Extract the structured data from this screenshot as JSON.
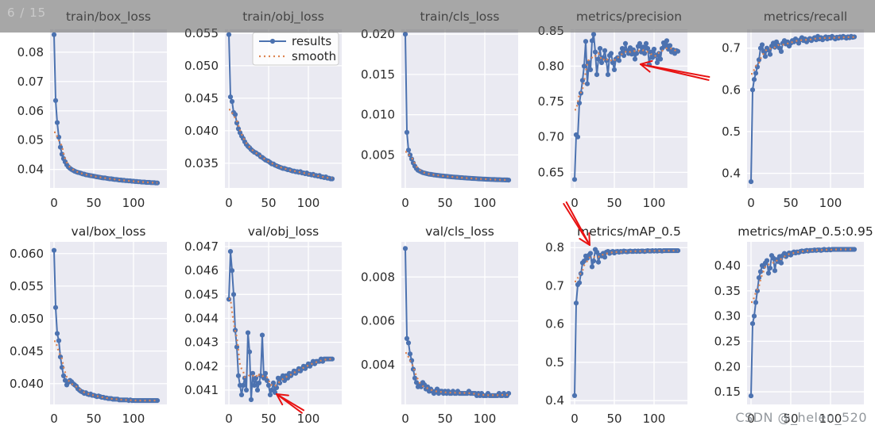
{
  "overlay": {
    "page_indicator": "6 / 15",
    "watermark": "CSDN @_helen_520"
  },
  "colors": {
    "results_line": "#4c72b0",
    "smooth_line": "#dd8452",
    "plot_bg": "#eaeaf2",
    "grid": "#ffffff",
    "tick_text": "#2b2b2b",
    "title_text": "#262626",
    "arrow": "#e81212",
    "legend_border": "#cccccc"
  },
  "legend": {
    "entries": [
      {
        "label": "results"
      },
      {
        "label": "smooth"
      }
    ]
  },
  "smoothing": {
    "method": "centered_moving_average",
    "window": 9
  },
  "annotations": {
    "arrows": [
      {
        "from": [
          892,
          99
        ],
        "to": [
          806,
          81
        ]
      },
      {
        "from": [
          711,
          256
        ],
        "to": [
          742,
          309
        ]
      },
      {
        "from": [
          381,
          519
        ],
        "to": [
          348,
          497
        ]
      }
    ]
  },
  "chart_data": [
    {
      "title": "train/box_loss",
      "type": "line",
      "legend": false,
      "x": {
        "start": 0,
        "step": 2,
        "count": 66
      },
      "xticks": [
        0,
        50,
        100
      ],
      "xlim": [
        -5,
        142
      ],
      "ylim": [
        0.0337,
        0.0878
      ],
      "ytick_values": [
        0.04,
        0.05,
        0.06,
        0.07,
        0.08
      ],
      "ytick_labels": [
        "0.04",
        "0.05",
        "0.06",
        "0.07",
        "0.08"
      ],
      "values": [
        0.086,
        0.0635,
        0.056,
        0.051,
        0.0476,
        0.0452,
        0.0437,
        0.0426,
        0.0416,
        0.0409,
        0.0404,
        0.04,
        0.0397,
        0.0394,
        0.0392,
        0.039,
        0.0389,
        0.0387,
        0.0385,
        0.0384,
        0.0382,
        0.0381,
        0.038,
        0.0379,
        0.0378,
        0.0377,
        0.0376,
        0.0375,
        0.0374,
        0.0373,
        0.0372,
        0.0371,
        0.0371,
        0.037,
        0.0369,
        0.0368,
        0.0368,
        0.0367,
        0.0366,
        0.0366,
        0.0365,
        0.0364,
        0.0364,
        0.0363,
        0.0363,
        0.0362,
        0.0362,
        0.0361,
        0.0361,
        0.036,
        0.036,
        0.0359,
        0.0359,
        0.0358,
        0.0358,
        0.0357,
        0.0357,
        0.0357,
        0.0356,
        0.0356,
        0.0356,
        0.0355,
        0.0355,
        0.0355,
        0.0354,
        0.0354
      ]
    },
    {
      "title": "train/obj_loss",
      "type": "line",
      "legend": true,
      "x": {
        "start": 0,
        "step": 2,
        "count": 66
      },
      "xticks": [
        0,
        50,
        100
      ],
      "xlim": [
        -5,
        142
      ],
      "ylim": [
        0.0312,
        0.0556
      ],
      "ytick_values": [
        0.035,
        0.04,
        0.045,
        0.05,
        0.055
      ],
      "ytick_labels": [
        "0.035",
        "0.040",
        "0.045",
        "0.050",
        "0.055"
      ],
      "values": [
        0.0548,
        0.0452,
        0.0445,
        0.0428,
        0.0425,
        0.0412,
        0.0403,
        0.0397,
        0.0392,
        0.0388,
        0.0383,
        0.0379,
        0.0376,
        0.0374,
        0.0371,
        0.0369,
        0.0367,
        0.0366,
        0.0364,
        0.0363,
        0.036,
        0.0359,
        0.0357,
        0.0355,
        0.0354,
        0.0353,
        0.0351,
        0.0349,
        0.0349,
        0.0347,
        0.0346,
        0.0345,
        0.0344,
        0.0343,
        0.0342,
        0.0342,
        0.0341,
        0.034,
        0.034,
        0.0339,
        0.0338,
        0.0338,
        0.0337,
        0.0337,
        0.0336,
        0.0337,
        0.0335,
        0.0335,
        0.0334,
        0.0335,
        0.0333,
        0.0333,
        0.0332,
        0.0333,
        0.0331,
        0.0331,
        0.033,
        0.0331,
        0.0329,
        0.0329,
        0.0328,
        0.0329,
        0.0327,
        0.0327,
        0.0326,
        0.0326
      ]
    },
    {
      "title": "train/cls_loss",
      "type": "line",
      "legend": false,
      "x": {
        "start": 0,
        "step": 2,
        "count": 66
      },
      "xticks": [
        0,
        50,
        100
      ],
      "xlim": [
        -5,
        142
      ],
      "ylim": [
        0.0009,
        0.0206
      ],
      "ytick_values": [
        0.005,
        0.01,
        0.015,
        0.02
      ],
      "ytick_labels": [
        "0.005",
        "0.010",
        "0.015",
        "0.020"
      ],
      "values": [
        0.02,
        0.0078,
        0.0056,
        0.005,
        0.0045,
        0.004,
        0.0036,
        0.0033,
        0.0031,
        0.003,
        0.0029,
        0.0028,
        0.00275,
        0.0027,
        0.00265,
        0.0026,
        0.00258,
        0.00255,
        0.00252,
        0.0025,
        0.00247,
        0.00245,
        0.00242,
        0.0024,
        0.00238,
        0.00236,
        0.00234,
        0.00232,
        0.0023,
        0.00228,
        0.00226,
        0.00225,
        0.00223,
        0.00222,
        0.0022,
        0.00218,
        0.00217,
        0.00215,
        0.00214,
        0.00212,
        0.00211,
        0.0021,
        0.00208,
        0.00207,
        0.00206,
        0.00205,
        0.00203,
        0.00202,
        0.00201,
        0.002,
        0.00199,
        0.00198,
        0.00197,
        0.00196,
        0.00195,
        0.00195,
        0.00194,
        0.00193,
        0.00192,
        0.00192,
        0.00191,
        0.0019,
        0.0019,
        0.00189,
        0.00189,
        0.00188
      ]
    },
    {
      "title": "metrics/precision",
      "type": "line",
      "legend": false,
      "x": {
        "start": 0,
        "step": 2,
        "count": 66
      },
      "xticks": [
        0,
        50,
        100
      ],
      "xlim": [
        -5,
        142
      ],
      "ylim": [
        0.628,
        0.852
      ],
      "ytick_values": [
        0.65,
        0.7,
        0.75,
        0.8,
        0.85
      ],
      "ytick_labels": [
        "0.65",
        "0.70",
        "0.75",
        "0.80",
        "0.85"
      ],
      "values": [
        0.64,
        0.703,
        0.7,
        0.748,
        0.762,
        0.78,
        0.8,
        0.835,
        0.775,
        0.805,
        0.795,
        0.836,
        0.845,
        0.82,
        0.788,
        0.81,
        0.825,
        0.805,
        0.812,
        0.822,
        0.808,
        0.788,
        0.815,
        0.818,
        0.805,
        0.795,
        0.81,
        0.812,
        0.808,
        0.818,
        0.825,
        0.815,
        0.832,
        0.822,
        0.818,
        0.826,
        0.817,
        0.823,
        0.81,
        0.818,
        0.828,
        0.832,
        0.82,
        0.827,
        0.818,
        0.832,
        0.825,
        0.802,
        0.82,
        0.812,
        0.824,
        0.815,
        0.805,
        0.818,
        0.81,
        0.825,
        0.833,
        0.828,
        0.836,
        0.824,
        0.829,
        0.82,
        0.823,
        0.818,
        0.822,
        0.821
      ]
    },
    {
      "title": "metrics/recall",
      "type": "line",
      "legend": false,
      "x": {
        "start": 0,
        "step": 2,
        "count": 66
      },
      "xticks": [
        0,
        50,
        100
      ],
      "xlim": [
        -5,
        142
      ],
      "ylim": [
        0.365,
        0.745
      ],
      "ytick_values": [
        0.4,
        0.5,
        0.6,
        0.7
      ],
      "ytick_labels": [
        "0.4",
        "0.5",
        "0.6",
        "0.7"
      ],
      "values": [
        0.38,
        0.6,
        0.625,
        0.64,
        0.655,
        0.672,
        0.7,
        0.708,
        0.692,
        0.68,
        0.7,
        0.695,
        0.685,
        0.705,
        0.712,
        0.702,
        0.715,
        0.708,
        0.7,
        0.692,
        0.712,
        0.718,
        0.71,
        0.715,
        0.705,
        0.712,
        0.718,
        0.715,
        0.722,
        0.718,
        0.712,
        0.72,
        0.725,
        0.718,
        0.722,
        0.715,
        0.72,
        0.723,
        0.718,
        0.722,
        0.725,
        0.72,
        0.728,
        0.722,
        0.725,
        0.72,
        0.724,
        0.727,
        0.722,
        0.726,
        0.724,
        0.728,
        0.725,
        0.722,
        0.726,
        0.724,
        0.727,
        0.725,
        0.728,
        0.726,
        0.724,
        0.727,
        0.725,
        0.728,
        0.726,
        0.727
      ]
    },
    {
      "title": "val/box_loss",
      "type": "line",
      "legend": false,
      "x": {
        "start": 0,
        "step": 2,
        "count": 66
      },
      "xticks": [
        0,
        50,
        100
      ],
      "xlim": [
        -5,
        142
      ],
      "ylim": [
        0.0368,
        0.0618
      ],
      "ytick_values": [
        0.04,
        0.045,
        0.05,
        0.055,
        0.06
      ],
      "ytick_labels": [
        "0.040",
        "0.045",
        "0.050",
        "0.055",
        "0.060"
      ],
      "values": [
        0.0605,
        0.0517,
        0.0477,
        0.0466,
        0.0441,
        0.0425,
        0.0412,
        0.0405,
        0.0398,
        0.0402,
        0.0405,
        0.0403,
        0.04,
        0.0398,
        0.0396,
        0.0392,
        0.039,
        0.0388,
        0.0387,
        0.0385,
        0.0386,
        0.0384,
        0.0383,
        0.0384,
        0.0382,
        0.0382,
        0.0381,
        0.038,
        0.0381,
        0.038,
        0.0379,
        0.0379,
        0.0378,
        0.0378,
        0.0377,
        0.0377,
        0.0377,
        0.0376,
        0.0376,
        0.0376,
        0.0376,
        0.0375,
        0.0375,
        0.0375,
        0.0375,
        0.0375,
        0.0375,
        0.0374,
        0.0375,
        0.0374,
        0.0374,
        0.0374,
        0.0374,
        0.0374,
        0.0374,
        0.0374,
        0.0374,
        0.0374,
        0.0374,
        0.0374,
        0.0374,
        0.0374,
        0.0374,
        0.0374,
        0.0374,
        0.0374
      ]
    },
    {
      "title": "val/obj_loss",
      "type": "line",
      "legend": false,
      "x": {
        "start": 0,
        "step": 2,
        "count": 66
      },
      "xticks": [
        0,
        50,
        100
      ],
      "xlim": [
        -5,
        142
      ],
      "ylim": [
        0.0404,
        0.0472
      ],
      "ytick_values": [
        0.041,
        0.042,
        0.043,
        0.044,
        0.045,
        0.046,
        0.047
      ],
      "ytick_labels": [
        "0.041",
        "0.042",
        "0.043",
        "0.044",
        "0.045",
        "0.046",
        "0.047"
      ],
      "values": [
        0.0448,
        0.0468,
        0.046,
        0.045,
        0.0435,
        0.0428,
        0.0416,
        0.0412,
        0.0408,
        0.0412,
        0.0415,
        0.041,
        0.0434,
        0.0426,
        0.0406,
        0.0417,
        0.0412,
        0.0415,
        0.041,
        0.0413,
        0.0416,
        0.0433,
        0.0415,
        0.0417,
        0.0414,
        0.0412,
        0.0408,
        0.041,
        0.0413,
        0.0409,
        0.0411,
        0.0415,
        0.0413,
        0.0415,
        0.0416,
        0.0414,
        0.0416,
        0.0415,
        0.0417,
        0.0416,
        0.0417,
        0.0418,
        0.0417,
        0.0418,
        0.0419,
        0.0418,
        0.0419,
        0.042,
        0.0419,
        0.042,
        0.0421,
        0.042,
        0.0421,
        0.0422,
        0.0421,
        0.0422,
        0.0422,
        0.0422,
        0.0423,
        0.0422,
        0.0423,
        0.0423,
        0.0423,
        0.0423,
        0.0423,
        0.0423
      ]
    },
    {
      "title": "val/cls_loss",
      "type": "line",
      "legend": false,
      "x": {
        "start": 0,
        "step": 2,
        "count": 66
      },
      "xticks": [
        0,
        50,
        100
      ],
      "xlim": [
        -5,
        142
      ],
      "ylim": [
        0.0022,
        0.0096
      ],
      "ytick_values": [
        0.004,
        0.006,
        0.008
      ],
      "ytick_labels": [
        "0.004",
        "0.006",
        "0.008"
      ],
      "values": [
        0.0093,
        0.0052,
        0.005,
        0.0045,
        0.0042,
        0.0038,
        0.0034,
        0.0032,
        0.003,
        0.0031,
        0.003,
        0.0032,
        0.0031,
        0.0029,
        0.003,
        0.0028,
        0.0029,
        0.0028,
        0.0027,
        0.0028,
        0.0029,
        0.0027,
        0.0028,
        0.0028,
        0.0027,
        0.0028,
        0.0027,
        0.0028,
        0.0027,
        0.0027,
        0.0028,
        0.0027,
        0.0027,
        0.0028,
        0.0027,
        0.0027,
        0.0027,
        0.0027,
        0.0027,
        0.0027,
        0.0028,
        0.0027,
        0.0027,
        0.0027,
        0.0027,
        0.0026,
        0.0027,
        0.0026,
        0.0027,
        0.0026,
        0.0026,
        0.0026,
        0.0027,
        0.0026,
        0.0026,
        0.0026,
        0.0026,
        0.0026,
        0.0026,
        0.0027,
        0.0026,
        0.0026,
        0.0027,
        0.0026,
        0.0026,
        0.0027
      ]
    },
    {
      "title": "metrics/mAP_0.5",
      "type": "line",
      "legend": false,
      "x": {
        "start": 0,
        "step": 2,
        "count": 66
      },
      "xticks": [
        0,
        50,
        100
      ],
      "xlim": [
        -5,
        142
      ],
      "ylim": [
        0.39,
        0.815
      ],
      "ytick_values": [
        0.4,
        0.5,
        0.6,
        0.7,
        0.8
      ],
      "ytick_labels": [
        "0.4",
        "0.5",
        "0.6",
        "0.7",
        "0.8"
      ],
      "values": [
        0.413,
        0.655,
        0.703,
        0.708,
        0.732,
        0.76,
        0.765,
        0.778,
        0.772,
        0.78,
        0.785,
        0.75,
        0.765,
        0.795,
        0.788,
        0.762,
        0.78,
        0.778,
        0.785,
        0.775,
        0.788,
        0.79,
        0.785,
        0.788,
        0.79,
        0.786,
        0.789,
        0.79,
        0.788,
        0.79,
        0.789,
        0.791,
        0.79,
        0.789,
        0.79,
        0.791,
        0.79,
        0.79,
        0.791,
        0.79,
        0.791,
        0.79,
        0.791,
        0.791,
        0.79,
        0.791,
        0.792,
        0.791,
        0.791,
        0.792,
        0.791,
        0.792,
        0.791,
        0.792,
        0.792,
        0.791,
        0.792,
        0.792,
        0.792,
        0.792,
        0.792,
        0.792,
        0.792,
        0.792,
        0.792,
        0.792
      ]
    },
    {
      "title": "metrics/mAP_0.5:0.95",
      "type": "line",
      "legend": false,
      "x": {
        "start": 0,
        "step": 2,
        "count": 66
      },
      "xticks": [
        0,
        50,
        100
      ],
      "xlim": [
        -5,
        142
      ],
      "ylim": [
        0.125,
        0.447
      ],
      "ytick_values": [
        0.15,
        0.2,
        0.25,
        0.3,
        0.35,
        0.4
      ],
      "ytick_labels": [
        "0.15",
        "0.20",
        "0.25",
        "0.30",
        "0.35",
        "0.40"
      ],
      "values": [
        0.142,
        0.285,
        0.3,
        0.327,
        0.35,
        0.376,
        0.388,
        0.4,
        0.398,
        0.405,
        0.41,
        0.385,
        0.395,
        0.42,
        0.415,
        0.39,
        0.412,
        0.408,
        0.418,
        0.405,
        0.42,
        0.424,
        0.418,
        0.422,
        0.425,
        0.421,
        0.425,
        0.427,
        0.425,
        0.427,
        0.426,
        0.428,
        0.429,
        0.428,
        0.429,
        0.43,
        0.429,
        0.43,
        0.43,
        0.43,
        0.431,
        0.43,
        0.431,
        0.431,
        0.43,
        0.431,
        0.432,
        0.431,
        0.431,
        0.432,
        0.431,
        0.432,
        0.432,
        0.432,
        0.432,
        0.432,
        0.432,
        0.432,
        0.432,
        0.432,
        0.432,
        0.432,
        0.432,
        0.432,
        0.432,
        0.432
      ]
    }
  ]
}
